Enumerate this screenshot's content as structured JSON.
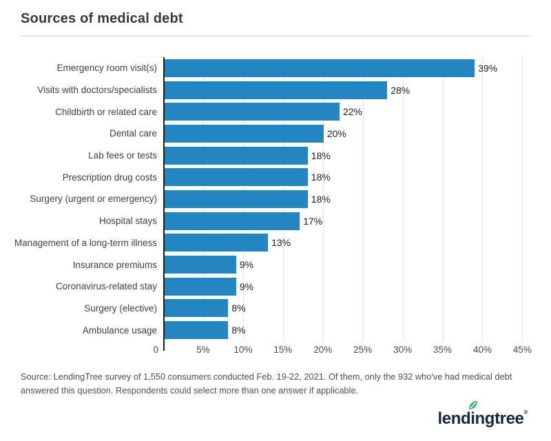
{
  "page": {
    "title": "Sources of medical debt",
    "source_text": "Source: LendingTree survey of 1,550 consumers conducted Feb. 19-22, 2021. Of them, only the 932 who've had medical debt answered this question. Respondents could select more than one answer if applicable."
  },
  "chart_data": {
    "type": "bar",
    "orientation": "horizontal",
    "title": "Sources of medical debt",
    "categories": [
      "Emergency room visit(s)",
      "Visits with doctors/specialists",
      "Childbirth or related care",
      "Dental care",
      "Lab fees or tests",
      "Prescription drug costs",
      "Surgery (urgent or emergency)",
      "Hospital stays",
      "Management of a long-term illness",
      "Insurance premiums",
      "Coronavirus-related stay",
      "Surgery (elective)",
      "Ambulance usage"
    ],
    "values": [
      39,
      28,
      22,
      20,
      18,
      18,
      18,
      17,
      13,
      9,
      9,
      8,
      8
    ],
    "value_labels": [
      "39%",
      "28%",
      "22%",
      "20%",
      "18%",
      "18%",
      "18%",
      "17%",
      "13%",
      "9%",
      "9%",
      "8%",
      "8%"
    ],
    "x_ticks": [
      "0",
      "5%",
      "10%",
      "15%",
      "20%",
      "25%",
      "30%",
      "35%",
      "40%",
      "45%"
    ],
    "x_tick_values": [
      0,
      5,
      10,
      15,
      20,
      25,
      30,
      35,
      40,
      45
    ],
    "xlim": [
      0,
      46
    ],
    "grid": "vertical",
    "bar_color": "#2386c1",
    "axis_color": "#1a1a1a",
    "gridline_color": "#e2e2e2"
  },
  "logo": {
    "parts": {
      "before": "lend",
      "dotted": "i",
      "after": "ngtree"
    },
    "registered": "®",
    "text_color": "#142b3e",
    "leaf_color": "#2eb567"
  }
}
